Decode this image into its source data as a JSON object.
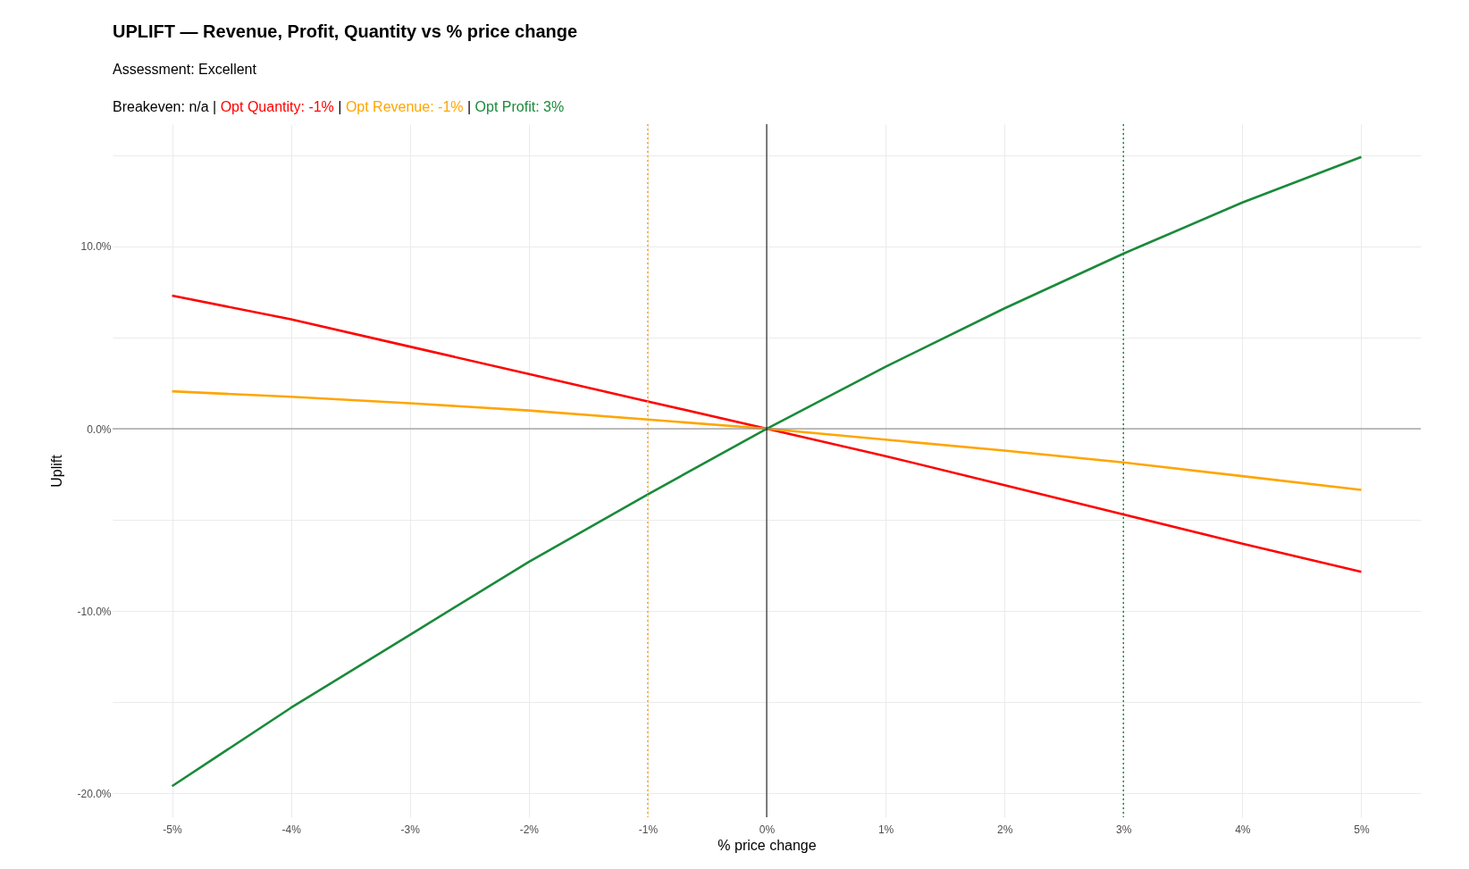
{
  "chart_data": {
    "type": "line",
    "title": "UPLIFT — Revenue, Profit, Quantity vs % price change",
    "subtitle": "Assessment: Excellent",
    "xlabel": "% price change",
    "ylabel": "Uplift",
    "annotations": [
      "Breakeven: n/a |",
      "Opt Quantity: -1%",
      "|",
      "Opt Revenue: -1%",
      "|",
      "Opt Profit: 3%"
    ],
    "x": [
      -5,
      -4,
      -3,
      -2,
      -1,
      0,
      1,
      2,
      3,
      4,
      5
    ],
    "series": [
      {
        "color": "#ff0000",
        "values": [
          7.3,
          6.0,
          4.5,
          3.0,
          1.5,
          0,
          -1.5,
          -3.1,
          -4.7,
          -6.3,
          -7.85
        ]
      },
      {
        "color": "#ffa500",
        "values": [
          2.05,
          1.75,
          1.4,
          1.0,
          0.5,
          0,
          -0.6,
          -1.2,
          -1.85,
          -2.6,
          -3.35
        ]
      },
      {
        "color": "#1a8a3a",
        "values": [
          -19.6,
          -15.3,
          -11.3,
          -7.3,
          -3.6,
          0,
          3.4,
          6.6,
          9.6,
          12.4,
          14.9
        ]
      }
    ],
    "xlim": [
      -5.5,
      5.5
    ],
    "ylim": [
      -21.3,
      16.7
    ],
    "xticks": [
      {
        "value": -5,
        "label": "-5%"
      },
      {
        "value": -4,
        "label": "-4%"
      },
      {
        "value": -3,
        "label": "-3%"
      },
      {
        "value": -2,
        "label": "-2%"
      },
      {
        "value": -1,
        "label": "-1%"
      },
      {
        "value": 0,
        "label": "0%"
      },
      {
        "value": 1,
        "label": "1%"
      },
      {
        "value": 2,
        "label": "2%"
      },
      {
        "value": 3,
        "label": "3%"
      },
      {
        "value": 4,
        "label": "4%"
      },
      {
        "value": 5,
        "label": "5%"
      }
    ],
    "yticks": [
      {
        "value": -20,
        "label": "-20.0%"
      },
      {
        "value": -15,
        "label": null
      },
      {
        "value": -10,
        "label": "-10.0%"
      },
      {
        "value": -5,
        "label": null
      },
      {
        "value": 0,
        "label": "0.0%"
      },
      {
        "value": 5,
        "label": null
      },
      {
        "value": 10,
        "label": "10.0%"
      },
      {
        "value": 15,
        "label": null
      }
    ],
    "ref_lines": [
      {
        "axis": "y",
        "value": 0,
        "color": "#808080",
        "line_style": "solid"
      },
      {
        "axis": "x",
        "value": 0,
        "color": "#000000",
        "line_style": "solid"
      },
      {
        "axis": "x",
        "value": -1,
        "color": "#ffa500",
        "line_style": "dotted"
      },
      {
        "axis": "x",
        "value": 3,
        "color": "#1a8a3a",
        "line_style": "dotted"
      }
    ],
    "grid": true,
    "line_style": "solid"
  }
}
